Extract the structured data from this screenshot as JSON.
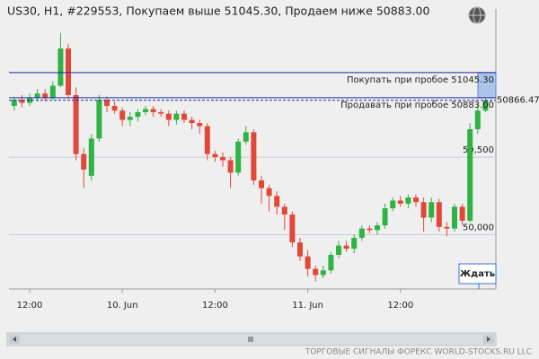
{
  "chart_data": {
    "type": "candlestick",
    "title": "US30, H1, #229553, Покупаем выше 51045.30, Продаем ниже 50883.00",
    "categories": [
      null,
      null,
      "12:00",
      null,
      null,
      null,
      null,
      null,
      null,
      null,
      null,
      null,
      null,
      null,
      "10. Jun",
      null,
      null,
      null,
      null,
      null,
      null,
      null,
      null,
      null,
      null,
      null,
      "12:00",
      null,
      null,
      null,
      null,
      null,
      null,
      null,
      null,
      null,
      null,
      null,
      "11. Jun",
      null,
      null,
      null,
      null,
      null,
      null,
      null,
      null,
      null,
      null,
      null,
      "12:00",
      null,
      null,
      null,
      null,
      null,
      null,
      null,
      null,
      null,
      null,
      null
    ],
    "open": [
      50830,
      50870,
      50850,
      50880,
      50910,
      50880,
      50960,
      51200,
      50900,
      50520,
      50380,
      50620,
      50870,
      50830,
      50800,
      50740,
      50760,
      50790,
      50810,
      50790,
      50780,
      50740,
      50780,
      50740,
      50720,
      50700,
      50520,
      50500,
      50480,
      50400,
      50600,
      50660,
      50350,
      50300,
      50250,
      50180,
      50130,
      49950,
      49860,
      49780,
      49740,
      49770,
      49870,
      49930,
      49910,
      49980,
      50040,
      50030,
      50060,
      50170,
      50220,
      50200,
      50240,
      50210,
      50110,
      50210,
      50050,
      50040,
      50180,
      50090,
      50680,
      50800
    ],
    "high": [
      50890,
      50900,
      50910,
      50940,
      50940,
      50990,
      51300,
      51230,
      50950,
      50560,
      50650,
      50900,
      50890,
      50860,
      50820,
      50790,
      50810,
      50830,
      50830,
      50810,
      50800,
      50800,
      50800,
      50760,
      50740,
      50720,
      50540,
      50530,
      50500,
      50620,
      50700,
      50680,
      50380,
      50320,
      50280,
      50200,
      50150,
      49980,
      49900,
      49800,
      49800,
      49890,
      49960,
      49960,
      50000,
      50060,
      50060,
      50080,
      50200,
      50240,
      50250,
      50260,
      50260,
      50240,
      50240,
      50230,
      50080,
      50200,
      50200,
      50720,
      50840,
      50880
    ],
    "low": [
      50800,
      50820,
      50830,
      50860,
      50860,
      50870,
      50950,
      50880,
      50480,
      50300,
      50350,
      50600,
      50790,
      50780,
      50700,
      50700,
      50730,
      50770,
      50760,
      50760,
      50700,
      50710,
      50720,
      50680,
      50650,
      50480,
      50470,
      50440,
      50300,
      50380,
      50580,
      50320,
      50200,
      50150,
      50130,
      50030,
      49920,
      49830,
      49730,
      49700,
      49720,
      49750,
      49850,
      49890,
      49880,
      49960,
      50010,
      50000,
      50040,
      50150,
      50180,
      50170,
      50180,
      50020,
      50080,
      50020,
      49990,
      50020,
      50060,
      50080,
      50650,
      50790
    ],
    "close": [
      50870,
      50850,
      50880,
      50910,
      50880,
      50960,
      51200,
      50900,
      50520,
      50420,
      50620,
      50870,
      50830,
      50800,
      50740,
      50760,
      50790,
      50810,
      50790,
      50780,
      50740,
      50780,
      50740,
      50720,
      50700,
      50520,
      50500,
      50480,
      50400,
      50600,
      50660,
      50350,
      50300,
      50250,
      50180,
      50130,
      49950,
      49860,
      49780,
      49740,
      49770,
      49870,
      49930,
      49910,
      49980,
      50040,
      50030,
      50060,
      50170,
      50220,
      50200,
      50240,
      50210,
      50110,
      50210,
      50050,
      50040,
      50180,
      50090,
      50680,
      50800,
      50866.47
    ],
    "up_color": "#2fb344",
    "down_color": "#e2483a",
    "ylim": [
      49650,
      51455
    ],
    "yticks": [
      {
        "value": 50000,
        "label": "50,000"
      },
      {
        "value": 50500,
        "label": "50,500"
      }
    ],
    "grid": true,
    "levels": [
      {
        "name": "Покупать при пробое 51045.30",
        "value": 51045.3,
        "color": "#1f2aa0"
      },
      {
        "name": "Продавать при пробое 50883.00",
        "value": 50883.0,
        "color": "#1f2aa0"
      }
    ],
    "current_price": 50866.47,
    "signal": "Ждать",
    "footer": "ТОРГОВЫЕ СИГНАЛЫ ФОРЕКС WORLD-STOCKS.RU LLC"
  }
}
